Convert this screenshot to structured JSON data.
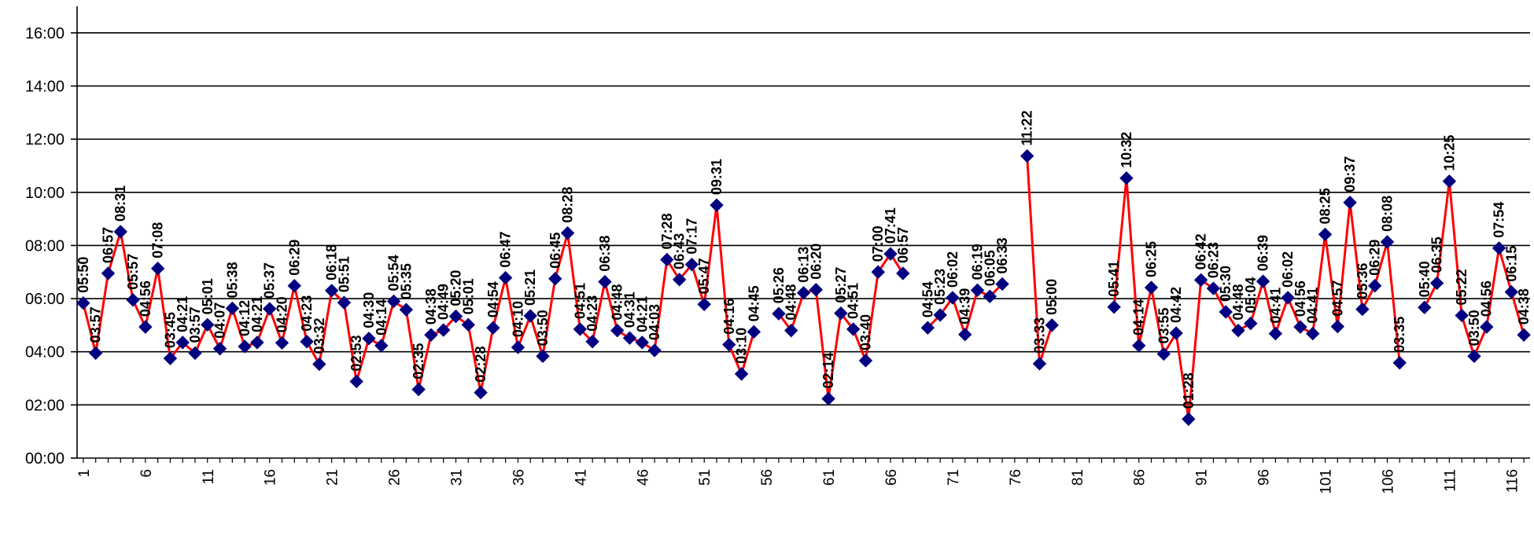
{
  "chart_data": {
    "type": "line",
    "title": "",
    "xlabel": "",
    "ylabel": "",
    "x_range": [
      1,
      117
    ],
    "ylim_minutes": [
      0,
      1020
    ],
    "y_ticks": [
      "00:00",
      "02:00",
      "04:00",
      "06:00",
      "08:00",
      "10:00",
      "12:00",
      "14:00",
      "16:00"
    ],
    "x_ticks": [
      "1",
      "6",
      "11",
      "16",
      "21",
      "26",
      "31",
      "36",
      "41",
      "46",
      "51",
      "56",
      "61",
      "66",
      "71",
      "76",
      "81",
      "86",
      "91",
      "96",
      "101",
      "106",
      "111",
      "116"
    ],
    "grid": "horizontal",
    "legend": "none",
    "colors": {
      "line": "#ff0000",
      "marker": "#000080",
      "grid": "#000000"
    },
    "points": [
      {
        "x": 1,
        "label": "05:50"
      },
      {
        "x": 2,
        "label": "03:57"
      },
      {
        "x": 3,
        "label": "06:57"
      },
      {
        "x": 4,
        "label": "08:31"
      },
      {
        "x": 5,
        "label": "05:57"
      },
      {
        "x": 6,
        "label": "04:56"
      },
      {
        "x": 7,
        "label": "07:08"
      },
      {
        "x": 8,
        "label": "03:45"
      },
      {
        "x": 9,
        "label": "04:21"
      },
      {
        "x": 10,
        "label": "03:57"
      },
      {
        "x": 11,
        "label": "05:01"
      },
      {
        "x": 12,
        "label": "04:07"
      },
      {
        "x": 13,
        "label": "05:38"
      },
      {
        "x": 14,
        "label": "04:12"
      },
      {
        "x": 15,
        "label": "04:21"
      },
      {
        "x": 16,
        "label": "05:37"
      },
      {
        "x": 17,
        "label": "04:20"
      },
      {
        "x": 18,
        "label": "06:29"
      },
      {
        "x": 19,
        "label": "04:23"
      },
      {
        "x": 20,
        "label": "03:32"
      },
      {
        "x": 21,
        "label": "06:18"
      },
      {
        "x": 22,
        "label": "05:51"
      },
      {
        "x": 23,
        "label": "02:53"
      },
      {
        "x": 24,
        "label": "04:30"
      },
      {
        "x": 25,
        "label": "04:14"
      },
      {
        "x": 26,
        "label": "05:54"
      },
      {
        "x": 27,
        "label": "05:35"
      },
      {
        "x": 28,
        "label": "02:35"
      },
      {
        "x": 29,
        "label": "04:38"
      },
      {
        "x": 30,
        "label": "04:49"
      },
      {
        "x": 31,
        "label": "05:20"
      },
      {
        "x": 32,
        "label": "05:01"
      },
      {
        "x": 33,
        "label": "02:28"
      },
      {
        "x": 34,
        "label": "04:54"
      },
      {
        "x": 35,
        "label": "06:47"
      },
      {
        "x": 36,
        "label": "04:10"
      },
      {
        "x": 37,
        "label": "05:21"
      },
      {
        "x": 38,
        "label": "03:50"
      },
      {
        "x": 39,
        "label": "06:45"
      },
      {
        "x": 40,
        "label": "08:28"
      },
      {
        "x": 41,
        "label": "04:51"
      },
      {
        "x": 42,
        "label": "04:23"
      },
      {
        "x": 43,
        "label": "06:38"
      },
      {
        "x": 44,
        "label": "04:48"
      },
      {
        "x": 45,
        "label": "04:31"
      },
      {
        "x": 46,
        "label": "04:21"
      },
      {
        "x": 47,
        "label": "04:03"
      },
      {
        "x": 48,
        "label": "07:28"
      },
      {
        "x": 49,
        "label": "06:43"
      },
      {
        "x": 50,
        "label": "07:17"
      },
      {
        "x": 51,
        "label": "05:47"
      },
      {
        "x": 52,
        "label": "09:31"
      },
      {
        "x": 53,
        "label": "04:16"
      },
      {
        "x": 54,
        "label": "03:10"
      },
      {
        "x": 55,
        "label": "04:45"
      },
      {
        "x": 57,
        "label": "05:26"
      },
      {
        "x": 58,
        "label": "04:48"
      },
      {
        "x": 59,
        "label": "06:13"
      },
      {
        "x": 60,
        "label": "06:20"
      },
      {
        "x": 61,
        "label": "02:14"
      },
      {
        "x": 62,
        "label": "05:27"
      },
      {
        "x": 63,
        "label": "04:51"
      },
      {
        "x": 64,
        "label": "03:40"
      },
      {
        "x": 65,
        "label": "07:00"
      },
      {
        "x": 66,
        "label": "07:41"
      },
      {
        "x": 67,
        "label": "06:57"
      },
      {
        "x": 69,
        "label": "04:54"
      },
      {
        "x": 70,
        "label": "05:23"
      },
      {
        "x": 71,
        "label": "06:02"
      },
      {
        "x": 72,
        "label": "04:39"
      },
      {
        "x": 73,
        "label": "06:19"
      },
      {
        "x": 74,
        "label": "06:05"
      },
      {
        "x": 75,
        "label": "06:33"
      },
      {
        "x": 77,
        "label": "11:22"
      },
      {
        "x": 78,
        "label": "03:33"
      },
      {
        "x": 79,
        "label": "05:00"
      },
      {
        "x": 84,
        "label": "05:41"
      },
      {
        "x": 85,
        "label": "10:32"
      },
      {
        "x": 86,
        "label": "04:14"
      },
      {
        "x": 87,
        "label": "06:25"
      },
      {
        "x": 88,
        "label": "03:55"
      },
      {
        "x": 89,
        "label": "04:42"
      },
      {
        "x": 90,
        "label": "01:28"
      },
      {
        "x": 91,
        "label": "06:42"
      },
      {
        "x": 92,
        "label": "06:23"
      },
      {
        "x": 93,
        "label": "05:30"
      },
      {
        "x": 94,
        "label": "04:48"
      },
      {
        "x": 95,
        "label": "05:04"
      },
      {
        "x": 96,
        "label": "06:39"
      },
      {
        "x": 97,
        "label": "04:41"
      },
      {
        "x": 98,
        "label": "06:02"
      },
      {
        "x": 99,
        "label": "04:56"
      },
      {
        "x": 100,
        "label": "04:41"
      },
      {
        "x": 101,
        "label": "08:25"
      },
      {
        "x": 102,
        "label": "04:57"
      },
      {
        "x": 103,
        "label": "09:37"
      },
      {
        "x": 104,
        "label": "05:36"
      },
      {
        "x": 105,
        "label": "06:29"
      },
      {
        "x": 106,
        "label": "08:08"
      },
      {
        "x": 107,
        "label": "03:35"
      },
      {
        "x": 109,
        "label": "05:40"
      },
      {
        "x": 110,
        "label": "06:35"
      },
      {
        "x": 111,
        "label": "10:25"
      },
      {
        "x": 112,
        "label": "05:22"
      },
      {
        "x": 113,
        "label": "03:50"
      },
      {
        "x": 114,
        "label": "04:56"
      },
      {
        "x": 115,
        "label": "07:54"
      },
      {
        "x": 116,
        "label": "06:15"
      },
      {
        "x": 117,
        "label": "04:38"
      }
    ]
  }
}
